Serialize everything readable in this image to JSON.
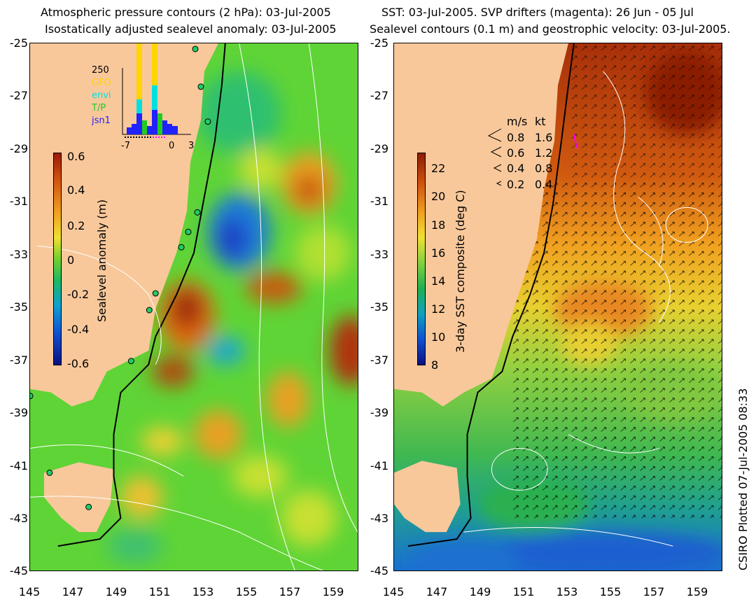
{
  "left_panel": {
    "title_line1": "Atmospheric pressure contours (2 hPa): 03-Jul-2005",
    "title_line2": "Isostatically adjusted sealevel anomaly: 03-Jul-2005",
    "colorbar": {
      "title": "Sealevel anomaly (m)",
      "ticks": [
        "0.6",
        "0.4",
        "0.2",
        "0",
        "-0.2",
        "-0.4",
        "-0.6"
      ]
    },
    "inset": {
      "count_label": "250",
      "missions": [
        {
          "name": "GFO",
          "color": "#ffd400"
        },
        {
          "name": "envi",
          "color": "#00e0e0"
        },
        {
          "name": "T/P",
          "color": "#22cc22"
        },
        {
          "name": "jsn1",
          "color": "#2222ff"
        }
      ],
      "x_ticks": [
        "-7",
        "0",
        "3"
      ]
    }
  },
  "right_panel": {
    "title_line1": "SST: 03-Jul-2005. SVP drifters (magenta): 26 Jun - 05 Jul",
    "title_line2": "Sealevel contours (0.1 m) and geostrophic velocity: 03-Jul-2005.",
    "colorbar": {
      "title": "3-day SST composite (deg C)",
      "ticks": [
        "22",
        "20",
        "18",
        "16",
        "14",
        "12",
        "10",
        "8"
      ]
    },
    "velocity_legend": {
      "header_ms": "m/s",
      "header_kt": "kt",
      "rows": [
        {
          "ms": "0.8",
          "kt": "1.6"
        },
        {
          "ms": "0.6",
          "kt": "1.2"
        },
        {
          "ms": "0.4",
          "kt": "0.8"
        },
        {
          "ms": "0.2",
          "kt": "0.4"
        }
      ]
    }
  },
  "axes": {
    "latitude_ticks": [
      "-25",
      "-27",
      "-29",
      "-31",
      "-33",
      "-35",
      "-37",
      "-39",
      "-41",
      "-43",
      "-45"
    ],
    "longitude_ticks": [
      "145",
      "147",
      "149",
      "151",
      "153",
      "155",
      "157",
      "159"
    ]
  },
  "credit": "CSIRO Plotted 07-Jul-2005 08:33",
  "colors": {
    "land": "#f8c89b",
    "ocean_base_left": "#5fd436",
    "ocean_base_right_north": "#c8460a",
    "ocean_base_right_south": "#3cb84a"
  }
}
